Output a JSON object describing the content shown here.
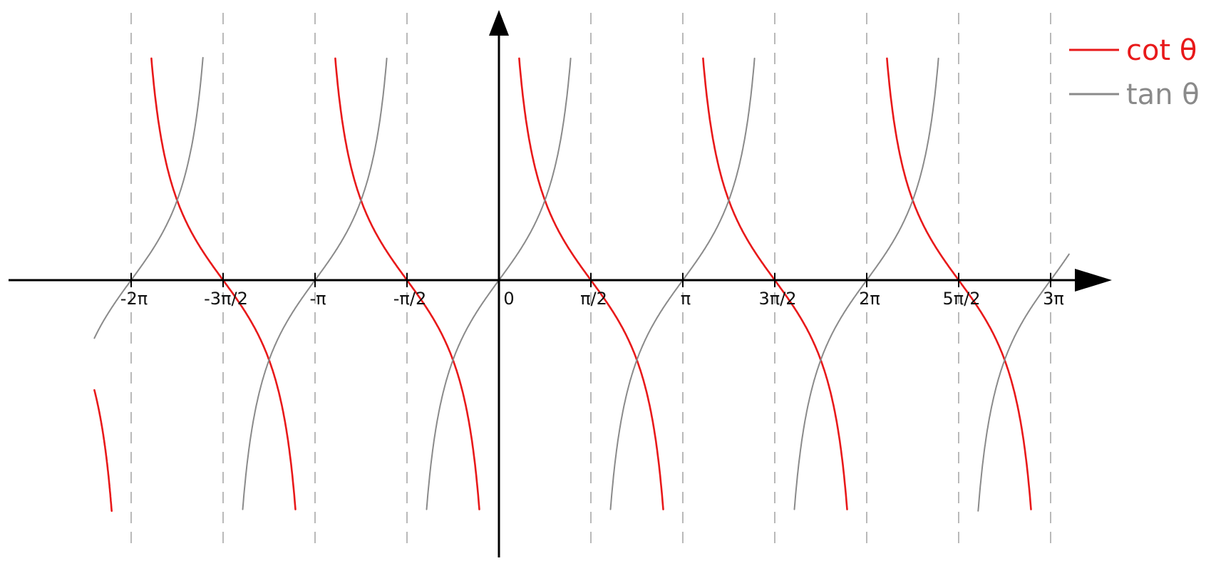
{
  "chart_data": {
    "type": "line",
    "title": "",
    "xlabel": "",
    "ylabel": "",
    "x_unit": "radians",
    "xlim": [
      -2.2,
      3.1
    ],
    "ylim": [
      -2.9,
      2.8
    ],
    "grid": false,
    "asymptotes_at_multiples_of": "pi/2",
    "x_ticks": [
      {
        "value": -2.0,
        "label": "-2π"
      },
      {
        "value": -1.5,
        "label": "-3π/2"
      },
      {
        "value": -1.0,
        "label": "-π"
      },
      {
        "value": -0.5,
        "label": "-π/2"
      },
      {
        "value": 0.0,
        "label": "0"
      },
      {
        "value": 0.5,
        "label": "π/2"
      },
      {
        "value": 1.0,
        "label": "π"
      },
      {
        "value": 1.5,
        "label": "3π/2"
      },
      {
        "value": 2.0,
        "label": "2π"
      },
      {
        "value": 2.5,
        "label": "5π/2"
      },
      {
        "value": 3.0,
        "label": "3π"
      }
    ],
    "series": [
      {
        "name": "cot θ",
        "function": "cot",
        "color": "#e8191a"
      },
      {
        "name": "tan θ",
        "function": "tan",
        "color": "#8a8a8a"
      }
    ],
    "legend_placement": "top-right"
  }
}
